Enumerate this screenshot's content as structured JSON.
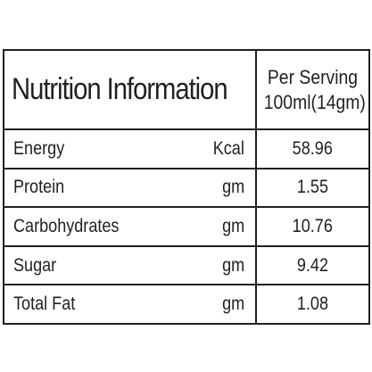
{
  "header": {
    "title": "Nutrition Information",
    "serving_line1": "Per Serving",
    "serving_line2": "100ml(14gm)"
  },
  "rows": [
    {
      "name": "Energy",
      "unit": "Kcal",
      "value": "58.96"
    },
    {
      "name": "Protein",
      "unit": "gm",
      "value": "1.55"
    },
    {
      "name": "Carbohydrates",
      "unit": "gm",
      "value": "10.76"
    },
    {
      "name": "Sugar",
      "unit": "gm",
      "value": "9.42"
    },
    {
      "name": "Total Fat",
      "unit": "gm",
      "value": "1.08"
    }
  ]
}
